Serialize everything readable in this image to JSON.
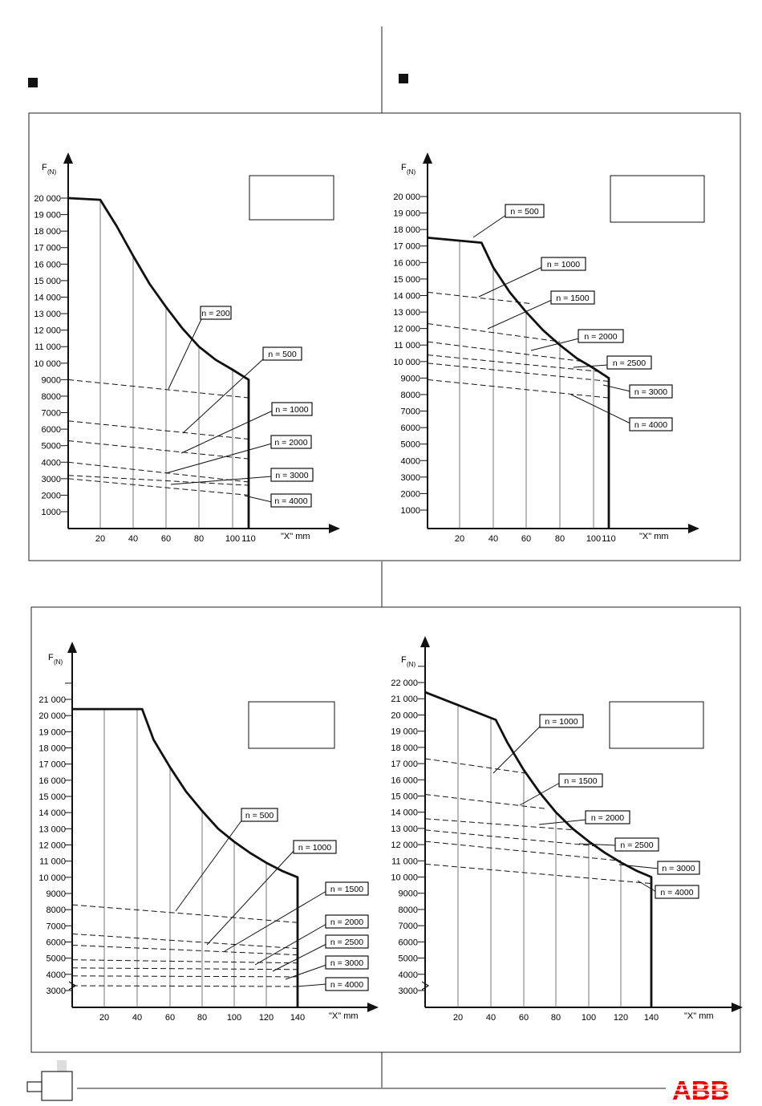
{
  "logo_text": "ABB",
  "charts": [
    {
      "y_label": "F",
      "y_sub": "(N)",
      "x_label": "\"X\" mm",
      "x_ticks": [
        20,
        40,
        60,
        80,
        100,
        110
      ],
      "y_ticks": [
        "20 000",
        "19 000",
        "18 000",
        "17 000",
        "16 000",
        "15 000",
        "14 000",
        "13 000",
        "12 000",
        "11 000",
        "10 000",
        "9000",
        "8000",
        "7000",
        "6000",
        "5000",
        "4000",
        "3000",
        "2000",
        "1000"
      ]
    },
    {
      "y_label": "F",
      "y_sub": "(N)",
      "x_label": "\"X\" mm",
      "x_ticks": [
        20,
        40,
        60,
        80,
        100,
        110
      ],
      "y_ticks": [
        "20 000",
        "19 000",
        "18 000",
        "17 000",
        "16 000",
        "15 000",
        "14 000",
        "13 000",
        "12 000",
        "11 000",
        "10 000",
        "9000",
        "8000",
        "7000",
        "6000",
        "5000",
        "4000",
        "3000",
        "2000",
        "1000"
      ]
    },
    {
      "y_label": "F",
      "y_sub": "(N)",
      "x_label": "\"X\" mm",
      "x_ticks": [
        20,
        40,
        60,
        80,
        100,
        120,
        140
      ],
      "y_ticks": [
        "21 000",
        "20 000",
        "19 000",
        "18 000",
        "17 000",
        "16 000",
        "15 000",
        "14 000",
        "13 000",
        "12 000",
        "11 000",
        "10 000",
        "9000",
        "8000",
        "7000",
        "6000",
        "5000",
        "4000",
        "3000"
      ]
    },
    {
      "y_label": "F",
      "y_sub": "(N)",
      "x_label": "\"X\" mm",
      "x_ticks": [
        20,
        40,
        60,
        80,
        100,
        120,
        140
      ],
      "y_ticks": [
        "22 000",
        "21 000",
        "20 000",
        "19 000",
        "18 000",
        "17 000",
        "16 000",
        "15 000",
        "14 000",
        "13 000",
        "12 000",
        "11 000",
        "10 000",
        "9000",
        "8000",
        "7000",
        "6000",
        "5000",
        "4000",
        "3000"
      ]
    }
  ],
  "chart_data": [
    {
      "type": "line",
      "xlabel": "\"X\" mm",
      "ylabel": "F(N)",
      "xlim": [
        0,
        110
      ],
      "ylim": [
        0,
        20000
      ],
      "boundary": {
        "x": [
          0,
          20,
          30,
          40,
          50,
          60,
          70,
          80,
          90,
          100,
          110,
          110
        ],
        "y": [
          20000,
          19900,
          18300,
          16500,
          14800,
          13400,
          12100,
          11000,
          10200,
          9600,
          9000,
          0
        ]
      },
      "series": [
        {
          "name": "n = 200",
          "x": [
            0,
            110
          ],
          "y": [
            9000,
            7900
          ]
        },
        {
          "name": "n = 500",
          "x": [
            0,
            110
          ],
          "y": [
            6500,
            5400
          ]
        },
        {
          "name": "n = 1000",
          "x": [
            0,
            110
          ],
          "y": [
            5300,
            4200
          ]
        },
        {
          "name": "n = 2000",
          "x": [
            0,
            110
          ],
          "y": [
            4000,
            2800
          ]
        },
        {
          "name": "n = 3000",
          "x": [
            0,
            110
          ],
          "y": [
            3200,
            2600
          ]
        },
        {
          "name": "n = 4000",
          "x": [
            0,
            110
          ],
          "y": [
            3000,
            2000
          ]
        }
      ]
    },
    {
      "type": "line",
      "xlabel": "\"X\" mm",
      "ylabel": "F(N)",
      "xlim": [
        0,
        110
      ],
      "ylim": [
        0,
        20000
      ],
      "boundary": {
        "x": [
          0,
          33,
          40,
          50,
          60,
          70,
          80,
          90,
          100,
          110,
          110
        ],
        "y": [
          17500,
          17200,
          15700,
          14200,
          13000,
          11900,
          11000,
          10200,
          9600,
          9000,
          0
        ]
      },
      "series": [
        {
          "name": "n = 500",
          "x": [
            0,
            33
          ],
          "y": [
            17500,
            17200
          ]
        },
        {
          "name": "n = 1000",
          "x": [
            0,
            64
          ],
          "y": [
            14200,
            13500
          ]
        },
        {
          "name": "n = 1500",
          "x": [
            0,
            80
          ],
          "y": [
            12300,
            11200
          ]
        },
        {
          "name": "n = 2000",
          "x": [
            0,
            94
          ],
          "y": [
            11200,
            10000
          ]
        },
        {
          "name": "n = 2500",
          "x": [
            0,
            103
          ],
          "y": [
            10400,
            9400
          ]
        },
        {
          "name": "n = 3000",
          "x": [
            0,
            110
          ],
          "y": [
            9900,
            8800
          ]
        },
        {
          "name": "n = 4000",
          "x": [
            0,
            110
          ],
          "y": [
            8900,
            7800
          ]
        }
      ]
    },
    {
      "type": "line",
      "xlabel": "\"X\" mm",
      "ylabel": "F(N)",
      "xlim": [
        0,
        140
      ],
      "ylim": [
        2500,
        21500
      ],
      "boundary": {
        "x": [
          0,
          43,
          50,
          60,
          70,
          80,
          90,
          100,
          110,
          120,
          130,
          140,
          140
        ],
        "y": [
          20400,
          20400,
          18500,
          16800,
          15300,
          14100,
          13000,
          12200,
          11500,
          10900,
          10400,
          10000,
          2500
        ]
      },
      "series": [
        {
          "name": "n = 500",
          "x": [
            0,
            140
          ],
          "y": [
            8300,
            7200
          ]
        },
        {
          "name": "n = 1000",
          "x": [
            0,
            140
          ],
          "y": [
            6500,
            5600
          ]
        },
        {
          "name": "n = 1500",
          "x": [
            0,
            140
          ],
          "y": [
            5800,
            5200
          ]
        },
        {
          "name": "n = 2000",
          "x": [
            0,
            140
          ],
          "y": [
            4900,
            4700
          ]
        },
        {
          "name": "n = 2500",
          "x": [
            0,
            140
          ],
          "y": [
            4400,
            4300
          ]
        },
        {
          "name": "n = 3000",
          "x": [
            0,
            140
          ],
          "y": [
            3900,
            3850
          ]
        },
        {
          "name": "n = 4000",
          "x": [
            0,
            140
          ],
          "y": [
            3300,
            3250
          ]
        }
      ]
    },
    {
      "type": "line",
      "xlabel": "\"X\" mm",
      "ylabel": "F(N)",
      "xlim": [
        0,
        140
      ],
      "ylim": [
        2500,
        22500
      ],
      "boundary": {
        "x": [
          0,
          43,
          50,
          60,
          70,
          80,
          90,
          100,
          110,
          120,
          130,
          140,
          140
        ],
        "y": [
          21400,
          19700,
          18300,
          16600,
          15200,
          14000,
          13000,
          12200,
          11500,
          10900,
          10400,
          10000,
          2500
        ]
      },
      "series": [
        {
          "name": "n = 1000",
          "x": [
            0,
            62
          ],
          "y": [
            17300,
            16400
          ]
        },
        {
          "name": "n = 1500",
          "x": [
            0,
            75
          ],
          "y": [
            15100,
            14200
          ]
        },
        {
          "name": "n = 2000",
          "x": [
            0,
            92
          ],
          "y": [
            13600,
            12900
          ]
        },
        {
          "name": "n = 2500",
          "x": [
            0,
            106
          ],
          "y": [
            12900,
            11900
          ]
        },
        {
          "name": "n = 3000",
          "x": [
            0,
            120
          ],
          "y": [
            12200,
            11000
          ]
        },
        {
          "name": "n = 4000",
          "x": [
            0,
            140
          ],
          "y": [
            10800,
            9600
          ]
        }
      ]
    }
  ]
}
